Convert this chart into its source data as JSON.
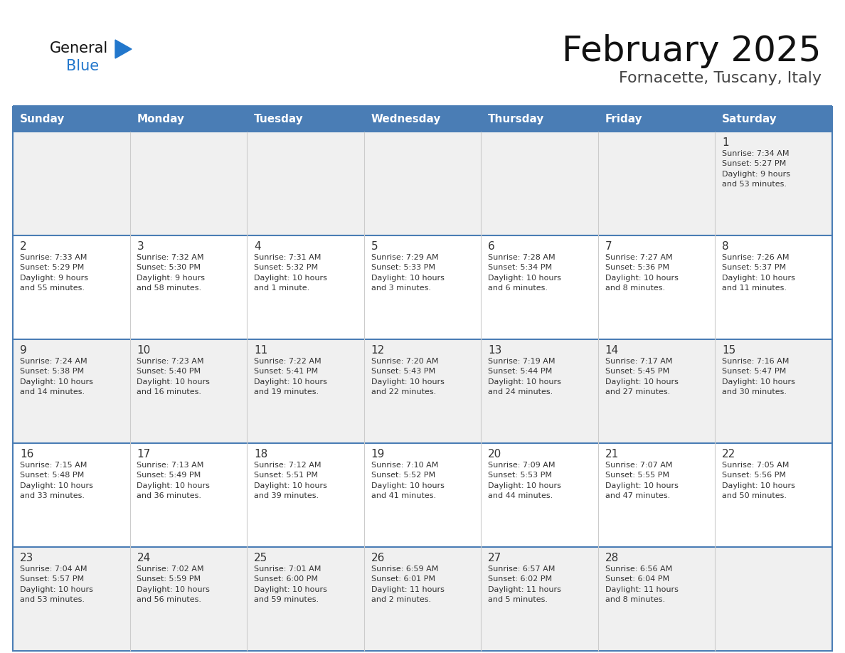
{
  "title": "February 2025",
  "subtitle": "Fornacette, Tuscany, Italy",
  "days_of_week": [
    "Sunday",
    "Monday",
    "Tuesday",
    "Wednesday",
    "Thursday",
    "Friday",
    "Saturday"
  ],
  "header_bg": "#4a7db5",
  "header_text": "#ffffff",
  "row_bg_even": "#f0f0f0",
  "row_bg_odd": "#ffffff",
  "border_color": "#4a7db5",
  "cell_border_color": "#aaaaaa",
  "text_color": "#333333",
  "title_color": "#111111",
  "subtitle_color": "#444444",
  "logo_general_color": "#111111",
  "logo_blue_color": "#2277cc",
  "logo_triangle_color": "#2277cc",
  "cal_data": [
    [
      {
        "day": "",
        "info": ""
      },
      {
        "day": "",
        "info": ""
      },
      {
        "day": "",
        "info": ""
      },
      {
        "day": "",
        "info": ""
      },
      {
        "day": "",
        "info": ""
      },
      {
        "day": "",
        "info": ""
      },
      {
        "day": "1",
        "info": "Sunrise: 7:34 AM\nSunset: 5:27 PM\nDaylight: 9 hours\nand 53 minutes."
      }
    ],
    [
      {
        "day": "2",
        "info": "Sunrise: 7:33 AM\nSunset: 5:29 PM\nDaylight: 9 hours\nand 55 minutes."
      },
      {
        "day": "3",
        "info": "Sunrise: 7:32 AM\nSunset: 5:30 PM\nDaylight: 9 hours\nand 58 minutes."
      },
      {
        "day": "4",
        "info": "Sunrise: 7:31 AM\nSunset: 5:32 PM\nDaylight: 10 hours\nand 1 minute."
      },
      {
        "day": "5",
        "info": "Sunrise: 7:29 AM\nSunset: 5:33 PM\nDaylight: 10 hours\nand 3 minutes."
      },
      {
        "day": "6",
        "info": "Sunrise: 7:28 AM\nSunset: 5:34 PM\nDaylight: 10 hours\nand 6 minutes."
      },
      {
        "day": "7",
        "info": "Sunrise: 7:27 AM\nSunset: 5:36 PM\nDaylight: 10 hours\nand 8 minutes."
      },
      {
        "day": "8",
        "info": "Sunrise: 7:26 AM\nSunset: 5:37 PM\nDaylight: 10 hours\nand 11 minutes."
      }
    ],
    [
      {
        "day": "9",
        "info": "Sunrise: 7:24 AM\nSunset: 5:38 PM\nDaylight: 10 hours\nand 14 minutes."
      },
      {
        "day": "10",
        "info": "Sunrise: 7:23 AM\nSunset: 5:40 PM\nDaylight: 10 hours\nand 16 minutes."
      },
      {
        "day": "11",
        "info": "Sunrise: 7:22 AM\nSunset: 5:41 PM\nDaylight: 10 hours\nand 19 minutes."
      },
      {
        "day": "12",
        "info": "Sunrise: 7:20 AM\nSunset: 5:43 PM\nDaylight: 10 hours\nand 22 minutes."
      },
      {
        "day": "13",
        "info": "Sunrise: 7:19 AM\nSunset: 5:44 PM\nDaylight: 10 hours\nand 24 minutes."
      },
      {
        "day": "14",
        "info": "Sunrise: 7:17 AM\nSunset: 5:45 PM\nDaylight: 10 hours\nand 27 minutes."
      },
      {
        "day": "15",
        "info": "Sunrise: 7:16 AM\nSunset: 5:47 PM\nDaylight: 10 hours\nand 30 minutes."
      }
    ],
    [
      {
        "day": "16",
        "info": "Sunrise: 7:15 AM\nSunset: 5:48 PM\nDaylight: 10 hours\nand 33 minutes."
      },
      {
        "day": "17",
        "info": "Sunrise: 7:13 AM\nSunset: 5:49 PM\nDaylight: 10 hours\nand 36 minutes."
      },
      {
        "day": "18",
        "info": "Sunrise: 7:12 AM\nSunset: 5:51 PM\nDaylight: 10 hours\nand 39 minutes."
      },
      {
        "day": "19",
        "info": "Sunrise: 7:10 AM\nSunset: 5:52 PM\nDaylight: 10 hours\nand 41 minutes."
      },
      {
        "day": "20",
        "info": "Sunrise: 7:09 AM\nSunset: 5:53 PM\nDaylight: 10 hours\nand 44 minutes."
      },
      {
        "day": "21",
        "info": "Sunrise: 7:07 AM\nSunset: 5:55 PM\nDaylight: 10 hours\nand 47 minutes."
      },
      {
        "day": "22",
        "info": "Sunrise: 7:05 AM\nSunset: 5:56 PM\nDaylight: 10 hours\nand 50 minutes."
      }
    ],
    [
      {
        "day": "23",
        "info": "Sunrise: 7:04 AM\nSunset: 5:57 PM\nDaylight: 10 hours\nand 53 minutes."
      },
      {
        "day": "24",
        "info": "Sunrise: 7:02 AM\nSunset: 5:59 PM\nDaylight: 10 hours\nand 56 minutes."
      },
      {
        "day": "25",
        "info": "Sunrise: 7:01 AM\nSunset: 6:00 PM\nDaylight: 10 hours\nand 59 minutes."
      },
      {
        "day": "26",
        "info": "Sunrise: 6:59 AM\nSunset: 6:01 PM\nDaylight: 11 hours\nand 2 minutes."
      },
      {
        "day": "27",
        "info": "Sunrise: 6:57 AM\nSunset: 6:02 PM\nDaylight: 11 hours\nand 5 minutes."
      },
      {
        "day": "28",
        "info": "Sunrise: 6:56 AM\nSunset: 6:04 PM\nDaylight: 11 hours\nand 8 minutes."
      },
      {
        "day": "",
        "info": ""
      }
    ]
  ]
}
